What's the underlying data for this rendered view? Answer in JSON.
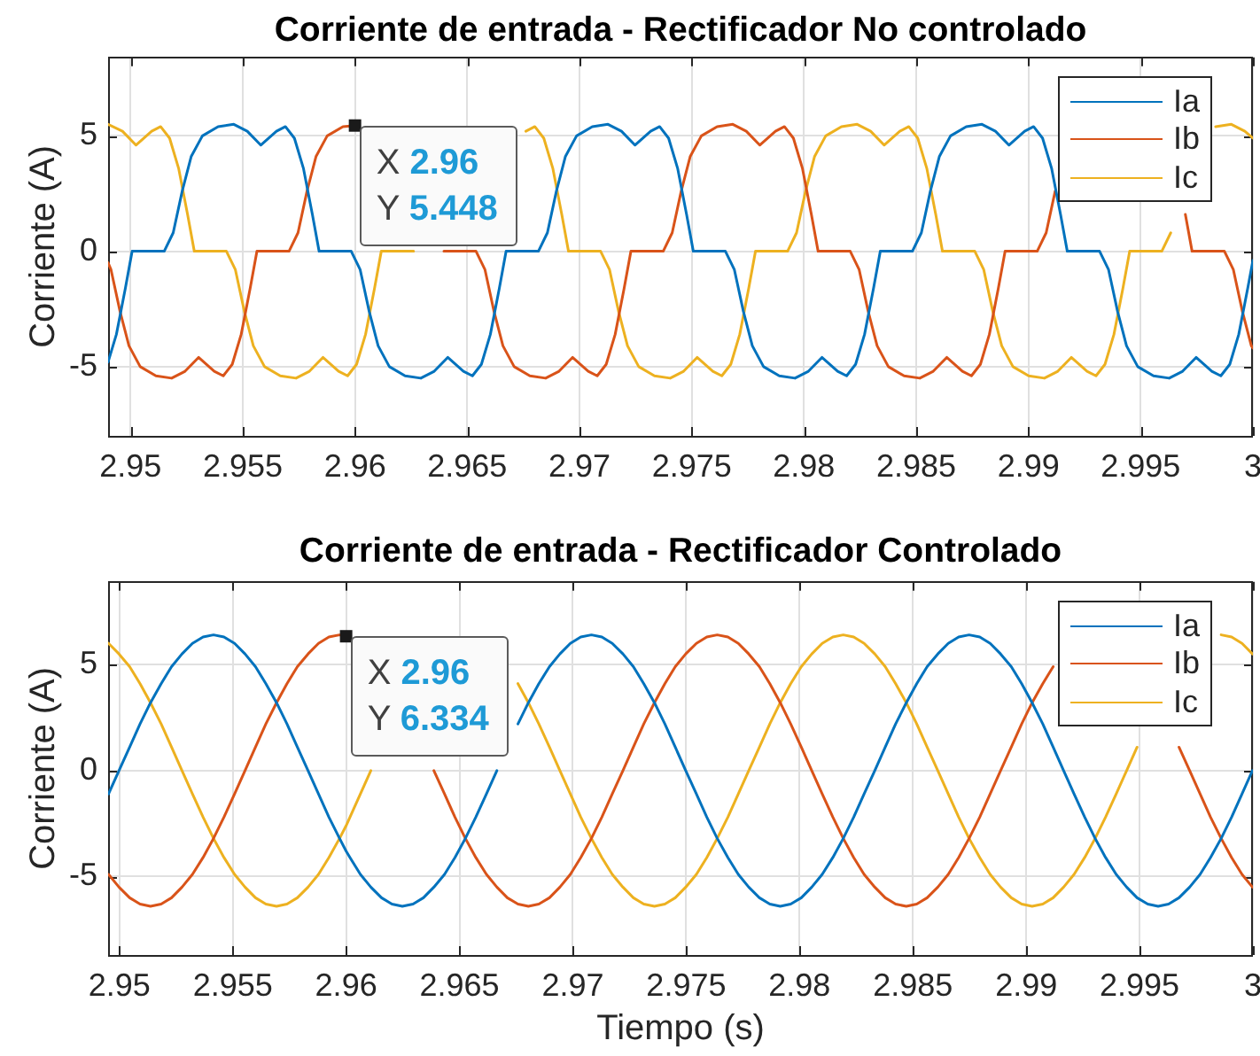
{
  "chart_data": [
    {
      "type": "line",
      "title": "Corriente de entrada - Rectificador No controlado",
      "ylabel": "Corriente (A)",
      "xlim": [
        2.949,
        3
      ],
      "xticks": [
        2.95,
        2.955,
        2.96,
        2.965,
        2.97,
        2.975,
        2.98,
        2.985,
        2.99,
        2.995,
        3
      ],
      "ylim": [
        -8,
        8.4
      ],
      "yticks": [
        -5,
        0,
        5
      ],
      "grid": true,
      "legend": "top right",
      "annotations": [
        {
          "text": "X 2.96\nY 5.448",
          "x": 2.96,
          "y": 5.448
        }
      ],
      "series": [
        {
          "name": "Ia",
          "color": "#0072bd",
          "x": [
            2.949,
            2.94937,
            2.94977,
            2.95007,
            2.9515,
            2.9519,
            2.9523,
            2.9527,
            2.9532,
            2.9539,
            2.9546,
            2.9552,
            2.9558,
            2.9565,
            2.9569,
            2.9573,
            2.9577,
            2.9581,
            2.9584,
            2.95983,
            2.96023,
            2.96063,
            2.96103,
            2.96153,
            2.96223,
            2.96293,
            2.96353,
            2.96413,
            2.96483,
            2.96523,
            2.96563,
            2.96603,
            2.96643,
            2.96673,
            2.96817,
            2.96857,
            2.96897,
            2.96937,
            2.96987,
            2.97057,
            2.97127,
            2.97187,
            2.97247,
            2.97317,
            2.97357,
            2.97397,
            2.97437,
            2.97477,
            2.97507,
            2.9765,
            2.9769,
            2.9773,
            2.9777,
            2.9782,
            2.9789,
            2.9796,
            2.9802,
            2.9808,
            2.9815,
            2.9819,
            2.9823,
            2.9827,
            2.9831,
            2.9834,
            2.98483,
            2.98523,
            2.98563,
            2.98603,
            2.98653,
            2.98723,
            2.98793,
            2.98853,
            2.98913,
            2.98983,
            2.99023,
            2.99063,
            2.99103,
            2.99143,
            2.99173,
            2.99317,
            2.99357,
            2.99397,
            2.99437,
            2.99487,
            2.99557,
            2.99627,
            2.99687,
            2.99747,
            2.99817,
            2.99857,
            2.99897,
            2.99937,
            2.99977,
            3
          ],
          "values": [
            -4.8,
            -3.6,
            -1.6,
            0,
            0,
            0.8,
            2.6,
            4.1,
            5.0,
            5.4,
            5.5,
            5.2,
            4.6,
            5.2,
            5.4,
            4.9,
            3.6,
            1.6,
            0,
            0,
            -0.8,
            -2.6,
            -4.1,
            -5.0,
            -5.4,
            -5.5,
            -5.2,
            -4.6,
            -5.2,
            -5.4,
            -4.9,
            -3.6,
            -1.6,
            0,
            0,
            0.8,
            2.6,
            4.1,
            5.0,
            5.4,
            5.5,
            5.2,
            4.6,
            5.2,
            5.4,
            4.9,
            3.6,
            1.6,
            0,
            0,
            -0.8,
            -2.6,
            -4.1,
            -5.0,
            -5.4,
            -5.5,
            -5.2,
            -4.6,
            -5.2,
            -5.4,
            -4.9,
            -3.6,
            -1.6,
            0,
            0,
            0.8,
            2.6,
            4.1,
            5.0,
            5.4,
            5.5,
            5.2,
            4.6,
            5.2,
            5.4,
            4.9,
            3.6,
            1.6,
            0,
            0,
            -0.8,
            -2.6,
            -4.1,
            -5.0,
            -5.4,
            -5.5,
            -5.2,
            -4.6,
            -5.2,
            -5.4,
            -4.9,
            -3.6,
            -1.6,
            -0.4
          ]
        },
        {
          "name": "Ib",
          "color": "#d95319",
          "x": [
            2.949,
            2.94913,
            2.94953,
            2.94993,
            2.95043,
            2.95113,
            2.95183,
            2.95243,
            2.95303,
            2.95373,
            2.95413,
            2.95453,
            2.95493,
            2.95533,
            2.95563,
            2.95706,
            2.95746,
            2.95786,
            2.95826,
            2.95876,
            2.95946,
            2.96,
            2.96076,
            2.96136,
            2.96206,
            2.96246,
            2.96286,
            2.96326,
            2.96366,
            2.96396,
            2.96539,
            2.96579,
            2.96619,
            2.96659,
            2.96709,
            2.96779,
            2.96849,
            2.96909,
            2.96969,
            2.97039,
            2.97079,
            2.97119,
            2.97159,
            2.97199,
            2.97229,
            2.97373,
            2.97413,
            2.97453,
            2.97493,
            2.97543,
            2.97613,
            2.97683,
            2.97743,
            2.97803,
            2.97873,
            2.97913,
            2.97953,
            2.97993,
            2.98033,
            2.98063,
            2.98206,
            2.98246,
            2.98286,
            2.98326,
            2.98376,
            2.98446,
            2.98516,
            2.98576,
            2.98636,
            2.98706,
            2.98746,
            2.98786,
            2.98826,
            2.98866,
            2.98896,
            2.99039,
            2.99079,
            2.99119,
            2.99159,
            2.99209,
            2.99279,
            2.99349,
            2.99409,
            2.99469,
            2.99539,
            2.99579,
            2.99619,
            2.99659,
            2.99699,
            2.99729,
            2.99873,
            2.99913,
            2.99953,
            2.99993,
            3
          ],
          "values": [
            -0.5,
            -0.8,
            -2.6,
            -4.1,
            -5.0,
            -5.4,
            -5.5,
            -5.2,
            -4.6,
            -5.2,
            -5.4,
            -4.9,
            -3.6,
            -1.6,
            0,
            0,
            0.8,
            2.6,
            4.1,
            5.0,
            5.4,
            5.448,
            null,
            null,
            null,
            null,
            null,
            null,
            null,
            0,
            0,
            -0.8,
            -2.6,
            -4.1,
            -5.0,
            -5.4,
            -5.5,
            -5.2,
            -4.6,
            -5.2,
            -5.4,
            -4.9,
            -3.6,
            -1.6,
            0,
            0,
            0.8,
            2.6,
            4.1,
            5.0,
            5.4,
            5.5,
            5.2,
            4.6,
            5.2,
            5.4,
            4.9,
            3.6,
            1.6,
            0,
            0,
            -0.8,
            -2.6,
            -4.1,
            -5.0,
            -5.4,
            -5.5,
            -5.2,
            -4.6,
            -5.2,
            -5.4,
            -4.9,
            -3.6,
            -1.6,
            0,
            0,
            0.8,
            2.6,
            null,
            null,
            null,
            null,
            null,
            null,
            null,
            null,
            null,
            null,
            1.6,
            0,
            0,
            -0.8,
            -2.6,
            -4.1,
            -4.2
          ]
        },
        {
          "name": "Ic",
          "color": "#edb120",
          "x": [
            2.949,
            2.94964,
            2.95024,
            2.95094,
            2.95134,
            2.95174,
            2.95214,
            2.95254,
            2.95284,
            2.95427,
            2.95467,
            2.95507,
            2.95547,
            2.95597,
            2.95667,
            2.95737,
            2.95797,
            2.95857,
            2.95927,
            2.95967,
            2.96007,
            2.96047,
            2.96087,
            2.96117,
            2.96261,
            2.96301,
            2.96341,
            2.96381,
            2.96431,
            2.96501,
            2.96571,
            2.96631,
            2.96691,
            2.96761,
            2.96801,
            2.96841,
            2.96881,
            2.96921,
            2.96951,
            2.97094,
            2.97134,
            2.97174,
            2.97214,
            2.97264,
            2.97334,
            2.97404,
            2.97464,
            2.97524,
            2.97594,
            2.97634,
            2.97674,
            2.97714,
            2.97754,
            2.97784,
            2.97927,
            2.97967,
            2.98007,
            2.98047,
            2.98097,
            2.98167,
            2.98237,
            2.98297,
            2.98357,
            2.98427,
            2.98467,
            2.98507,
            2.98547,
            2.98587,
            2.98617,
            2.98761,
            2.98801,
            2.98841,
            2.98881,
            2.98931,
            2.99001,
            2.99071,
            2.99131,
            2.99191,
            2.99261,
            2.99301,
            2.99341,
            2.99381,
            2.99421,
            2.99451,
            2.99594,
            2.99634,
            2.99674,
            2.99714,
            2.99764,
            2.99834,
            2.99904,
            2.99964,
            3
          ],
          "values": [
            5.5,
            5.2,
            4.6,
            5.2,
            5.4,
            4.9,
            3.6,
            1.6,
            0,
            0,
            -0.8,
            -2.6,
            -4.1,
            -5.0,
            -5.4,
            -5.5,
            -5.2,
            -4.6,
            -5.2,
            -5.4,
            -4.9,
            -3.6,
            -1.6,
            0,
            0,
            null,
            null,
            null,
            null,
            null,
            null,
            null,
            null,
            5.2,
            5.4,
            4.9,
            3.6,
            1.6,
            0,
            0,
            -0.8,
            -2.6,
            -4.1,
            -5.0,
            -5.4,
            -5.5,
            -5.2,
            -4.6,
            -5.2,
            -5.4,
            -4.9,
            -3.6,
            -1.6,
            0,
            0,
            0.8,
            2.6,
            4.1,
            5.0,
            5.4,
            5.5,
            5.2,
            4.6,
            5.2,
            5.4,
            4.9,
            3.6,
            1.6,
            0,
            0,
            -0.8,
            -2.6,
            -4.1,
            -5.0,
            -5.4,
            -5.5,
            -5.2,
            -4.6,
            -5.2,
            -5.4,
            -4.9,
            -3.6,
            -1.6,
            0,
            0,
            0.8,
            null,
            null,
            null,
            5.4,
            5.5,
            5.2,
            4.9
          ]
        }
      ]
    },
    {
      "type": "line",
      "title": "Corriente de entrada - Rectificador Controlado",
      "xlabel": "Tiempo (s)",
      "ylabel": "Corriente (A)",
      "xlim": [
        2.9495,
        3
      ],
      "xticks": [
        2.95,
        2.955,
        2.96,
        2.965,
        2.97,
        2.975,
        2.98,
        2.985,
        2.99,
        2.995,
        3
      ],
      "ylim": [
        -8.7,
        8.9
      ],
      "yticks": [
        -5,
        0,
        5
      ],
      "grid": true,
      "legend": "top right",
      "annotations": [
        {
          "text": "X 2.96\nY 6.334",
          "x": 2.96,
          "y": 6.334
        }
      ],
      "x": [
        2.94952,
        2.94998,
        2.95045,
        2.95091,
        2.95137,
        2.95184,
        2.9523,
        2.95276,
        2.95322,
        2.95369,
        2.95415,
        2.95461,
        2.95508,
        2.95554,
        2.956,
        2.95646,
        2.95693,
        2.95739,
        2.95785,
        2.95832,
        2.95878,
        2.95924,
        2.95971,
        2.96,
        2.96017,
        2.96063,
        2.96109,
        2.96156,
        2.96202,
        2.96248,
        2.96295,
        2.96341,
        2.96387,
        2.96434,
        2.9648,
        2.96526,
        2.96572,
        2.96619,
        2.96665,
        2.96711,
        2.96758,
        2.96804,
        2.9685,
        2.96897,
        2.96943,
        2.96989,
        2.97035,
        2.97082,
        2.97128,
        2.97174,
        2.97221,
        2.97267,
        2.97313,
        2.9736,
        2.97406,
        2.97452,
        2.97498,
        2.97545,
        2.97591,
        2.97637,
        2.97684,
        2.9773,
        2.97776,
        2.97823,
        2.97869,
        2.97915,
        2.97961,
        2.98008,
        2.98054,
        2.981,
        2.98147,
        2.98193,
        2.98239,
        2.98285,
        2.98332,
        2.98378,
        2.98424,
        2.98471,
        2.98517,
        2.98563,
        2.9861,
        2.98656,
        2.98702,
        2.98748,
        2.98795,
        2.98841,
        2.98887,
        2.98934,
        2.9898,
        2.99026,
        2.99073,
        2.99119,
        2.99165,
        2.99211,
        2.99258,
        2.99304,
        2.9935,
        2.99397,
        2.99443,
        2.99489,
        2.99536,
        2.99582,
        2.99628,
        2.99674,
        2.99721,
        2.99767,
        2.99813,
        2.9986,
        2.99906,
        2.99952,
        2.99998
      ],
      "series": [
        {
          "name": "Ia",
          "color": "#0072bd",
          "values": [
            -1.1,
            0,
            1.1,
            2.2,
            3.2,
            4.1,
            4.9,
            5.5,
            6.0,
            6.3,
            6.4,
            6.3,
            6.0,
            5.5,
            4.9,
            4.1,
            3.2,
            2.2,
            1.1,
            0,
            -1.1,
            -2.2,
            -3.2,
            -3.8,
            -4.1,
            -4.9,
            -5.5,
            -6.0,
            -6.3,
            -6.4,
            -6.3,
            -6.0,
            -5.5,
            -4.9,
            -4.1,
            -3.2,
            -2.2,
            -1.1,
            0,
            null,
            2.2,
            3.2,
            4.1,
            4.9,
            5.5,
            6.0,
            6.3,
            6.4,
            6.3,
            6.0,
            5.5,
            4.9,
            4.1,
            3.2,
            2.2,
            1.1,
            0,
            -1.1,
            -2.2,
            -3.2,
            -4.1,
            -4.9,
            -5.5,
            -6.0,
            -6.3,
            -6.4,
            -6.3,
            -6.0,
            -5.5,
            -4.9,
            -4.1,
            -3.2,
            -2.2,
            -1.1,
            0,
            1.1,
            2.2,
            3.2,
            4.1,
            4.9,
            5.5,
            6.0,
            6.3,
            6.4,
            6.3,
            6.0,
            5.5,
            4.9,
            4.1,
            3.2,
            2.2,
            1.1,
            0,
            -1.1,
            -2.2,
            -3.2,
            -4.1,
            -4.9,
            -5.5,
            -6.0,
            -6.3,
            -6.4,
            -6.3,
            -6.0,
            -5.5,
            -4.9,
            -4.1,
            -3.2,
            -2.2,
            -1.1,
            0
          ]
        },
        {
          "name": "Ib",
          "color": "#d95319",
          "values": [
            -4.9,
            -5.5,
            -6.0,
            -6.3,
            -6.4,
            -6.3,
            -6.0,
            -5.5,
            -4.9,
            -4.1,
            -3.2,
            -2.2,
            -1.1,
            0,
            1.1,
            2.2,
            3.2,
            4.1,
            4.9,
            5.5,
            6.0,
            6.3,
            6.4,
            6.334,
            null,
            null,
            null,
            null,
            null,
            null,
            null,
            null,
            0,
            -1.1,
            -2.2,
            -3.2,
            -4.1,
            -4.9,
            -5.5,
            -6.0,
            -6.3,
            -6.4,
            -6.3,
            -6.0,
            -5.5,
            -4.9,
            -4.1,
            -3.2,
            -2.2,
            -1.1,
            0,
            1.1,
            2.2,
            3.2,
            4.1,
            4.9,
            5.5,
            6.0,
            6.3,
            6.4,
            6.3,
            6.0,
            5.5,
            4.9,
            4.1,
            3.2,
            2.2,
            1.1,
            0,
            -1.1,
            -2.2,
            -3.2,
            -4.1,
            -4.9,
            -5.5,
            -6.0,
            -6.3,
            -6.4,
            -6.3,
            -6.0,
            -5.5,
            -4.9,
            -4.1,
            -3.2,
            -2.2,
            -1.1,
            0,
            1.1,
            2.2,
            3.2,
            4.1,
            4.9,
            null,
            null,
            null,
            null,
            null,
            null,
            null,
            null,
            null,
            null,
            null,
            1.1,
            0,
            -1.1,
            -2.2,
            -3.2,
            -4.1,
            -4.9,
            -5.5
          ]
        },
        {
          "name": "Ic",
          "color": "#edb120",
          "values": [
            6.0,
            5.5,
            4.9,
            4.1,
            3.2,
            2.2,
            1.1,
            0,
            -1.1,
            -2.2,
            -3.2,
            -4.1,
            -4.9,
            -5.5,
            -6.0,
            -6.3,
            -6.4,
            -6.3,
            -6.0,
            -5.5,
            -4.9,
            -4.1,
            -3.2,
            -2.6,
            -2.2,
            -1.1,
            0,
            null,
            null,
            null,
            null,
            null,
            null,
            null,
            null,
            null,
            null,
            null,
            null,
            null,
            4.1,
            3.2,
            2.2,
            1.1,
            0,
            -1.1,
            -2.2,
            -3.2,
            -4.1,
            -4.9,
            -5.5,
            -6.0,
            -6.3,
            -6.4,
            -6.3,
            -6.0,
            -5.5,
            -4.9,
            -4.1,
            -3.2,
            -2.2,
            -1.1,
            0,
            1.1,
            2.2,
            3.2,
            4.1,
            4.9,
            5.5,
            6.0,
            6.3,
            6.4,
            6.3,
            6.0,
            5.5,
            4.9,
            4.1,
            3.2,
            2.2,
            1.1,
            0,
            -1.1,
            -2.2,
            -3.2,
            -4.1,
            -4.9,
            -5.5,
            -6.0,
            -6.3,
            -6.4,
            -6.3,
            -6.0,
            -5.5,
            -4.9,
            -4.1,
            -3.2,
            -2.2,
            -1.1,
            0,
            1.1,
            null,
            null,
            null,
            null,
            null,
            null,
            null,
            6.4,
            6.3,
            6.0,
            5.5
          ]
        }
      ]
    }
  ]
}
